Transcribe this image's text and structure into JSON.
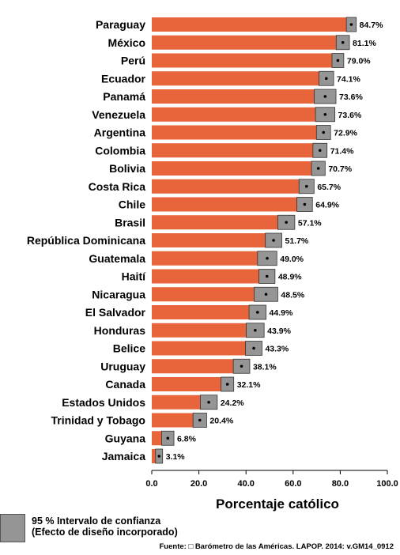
{
  "chart_data": {
    "type": "bar",
    "orientation": "horizontal",
    "categories": [
      "Paraguay",
      "México",
      "Perú",
      "Ecuador",
      "Panamá",
      "Venezuela",
      "Argentina",
      "Colombia",
      "Bolivia",
      "Costa Rica",
      "Chile",
      "Brasil",
      "República Dominicana",
      "Guatemala",
      "Haití",
      "Nicaragua",
      "El Salvador",
      "Honduras",
      "Belice",
      "Uruguay",
      "Canada",
      "Estados Unidos",
      "Trinidad y Tobago",
      "Guyana",
      "Jamaica"
    ],
    "values": [
      84.7,
      81.1,
      79.0,
      74.1,
      73.6,
      73.6,
      72.9,
      71.4,
      70.7,
      65.7,
      64.9,
      57.1,
      51.7,
      49.0,
      48.9,
      48.5,
      44.9,
      43.9,
      43.3,
      38.1,
      32.1,
      24.2,
      20.4,
      6.8,
      3.1
    ],
    "value_labels": [
      "84.7%",
      "81.1%",
      "79.0%",
      "74.1%",
      "73.6%",
      "73.6%",
      "72.9%",
      "71.4%",
      "70.7%",
      "65.7%",
      "64.9%",
      "57.1%",
      "51.7%",
      "49.0%",
      "48.9%",
      "48.5%",
      "44.9%",
      "43.9%",
      "43.3%",
      "38.1%",
      "32.1%",
      "24.2%",
      "20.4%",
      "6.8%",
      "3.1%"
    ],
    "ci_low": [
      82.6,
      78.3,
      76.5,
      71.0,
      69.0,
      69.5,
      69.9,
      68.4,
      67.8,
      62.5,
      61.6,
      53.5,
      48.2,
      44.9,
      45.5,
      43.5,
      41.3,
      40.1,
      39.8,
      34.6,
      29.4,
      20.6,
      17.5,
      4.2,
      1.6
    ],
    "ci_high": [
      86.8,
      83.9,
      81.5,
      77.2,
      78.2,
      77.7,
      75.9,
      74.4,
      73.6,
      68.9,
      68.2,
      60.7,
      55.2,
      53.1,
      52.3,
      53.5,
      48.5,
      47.7,
      46.8,
      41.6,
      34.8,
      27.8,
      23.3,
      9.4,
      4.6
    ],
    "xlabel": "Porcentaje católico",
    "xlim": [
      0,
      100
    ],
    "xticks": [
      "0.0",
      "20.0",
      "40.0",
      "60.0",
      "80.0",
      "100.0"
    ],
    "tick_values": [
      0,
      20,
      40,
      60,
      80,
      100
    ],
    "grid": false,
    "bar_color": "#e8643a",
    "ci_color": "#959595",
    "legend": {
      "position": "bottom-left",
      "line1": "95 % Intervalo de confianza",
      "line2": "(Efecto de diseño incorporado)"
    },
    "source": "Fuente: □ Barómetro de las Américas. LAPOP. 2014: v.GM14_0912"
  }
}
